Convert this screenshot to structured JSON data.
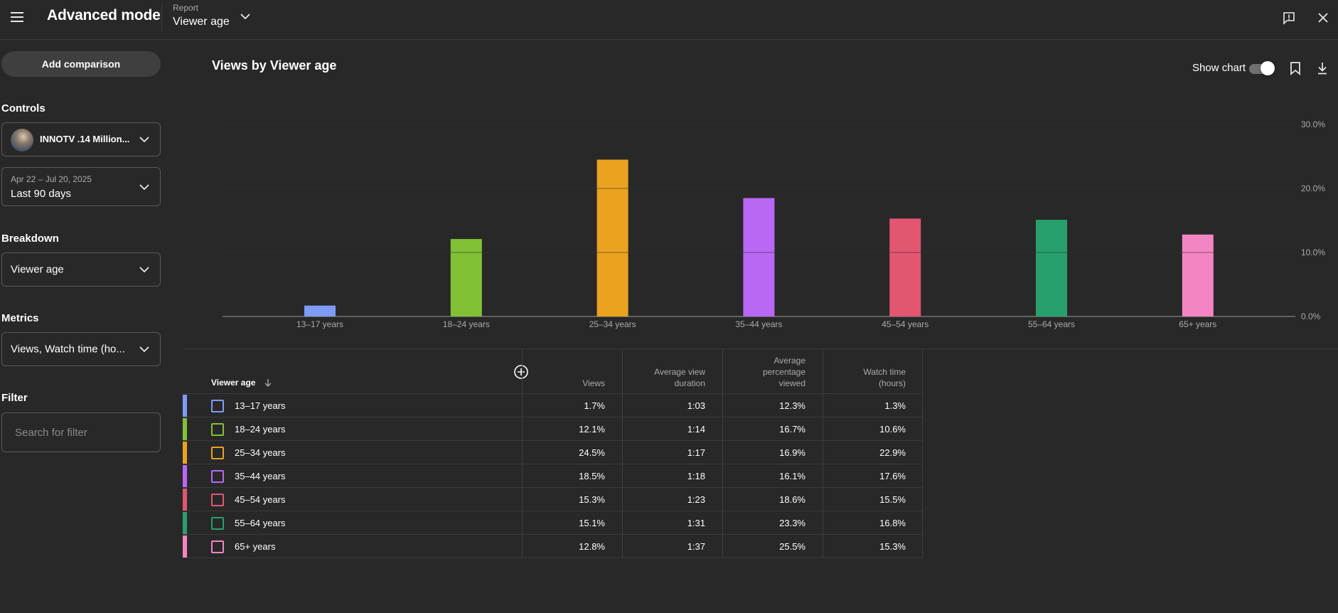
{
  "topbar": {
    "app_title": "Advanced mode",
    "report_label": "Report",
    "report_value": "Viewer age"
  },
  "sidebar": {
    "add_comparison": "Add comparison",
    "controls_label": "Controls",
    "channel_name": "INNOTV .14 Million...",
    "date_range_small": "Apr 22 – Jul 20, 2025",
    "date_range": "Last 90 days",
    "breakdown_label": "Breakdown",
    "breakdown_value": "Viewer age",
    "metrics_label": "Metrics",
    "metrics_value": "Views, Watch time (ho...",
    "filter_label": "Filter",
    "filter_placeholder": "Search for filter"
  },
  "chart_header": {
    "title": "Views by Viewer age",
    "show_chart_label": "Show chart",
    "show_chart_on": true
  },
  "chart_data": {
    "type": "bar",
    "title": "Views by Viewer age",
    "categories": [
      "13–17 years",
      "18–24 years",
      "25–34 years",
      "35–44 years",
      "45–54 years",
      "55–64 years",
      "65+ years"
    ],
    "values": [
      1.7,
      12.1,
      24.5,
      18.5,
      15.3,
      15.1,
      12.8
    ],
    "colors": [
      "#7e9bf7",
      "#82c136",
      "#eaa21f",
      "#b868f4",
      "#e25670",
      "#28a06d",
      "#f485c4"
    ],
    "ylim": [
      0,
      30
    ],
    "yticks": [
      "0.0%",
      "10.0%",
      "20.0%",
      "30.0%"
    ],
    "grid": true,
    "xlabel": "",
    "ylabel": ""
  },
  "table": {
    "columns": {
      "dimension": "Viewer age",
      "views": "Views",
      "avd_1": "Average view",
      "avd_2": "duration",
      "apv_1": "Average",
      "apv_2": "percentage",
      "apv_3": "viewed",
      "wt_1": "Watch time",
      "wt_2": "(hours)"
    },
    "rows": [
      {
        "label": "13–17 years",
        "views": "1.7%",
        "avd": "1:03",
        "apv": "12.3%",
        "wt": "1.3%"
      },
      {
        "label": "18–24 years",
        "views": "12.1%",
        "avd": "1:14",
        "apv": "16.7%",
        "wt": "10.6%"
      },
      {
        "label": "25–34 years",
        "views": "24.5%",
        "avd": "1:17",
        "apv": "16.9%",
        "wt": "22.9%"
      },
      {
        "label": "35–44 years",
        "views": "18.5%",
        "avd": "1:18",
        "apv": "16.1%",
        "wt": "17.6%"
      },
      {
        "label": "45–54 years",
        "views": "15.3%",
        "avd": "1:23",
        "apv": "18.6%",
        "wt": "15.5%"
      },
      {
        "label": "55–64 years",
        "views": "15.1%",
        "avd": "1:31",
        "apv": "23.3%",
        "wt": "16.8%"
      },
      {
        "label": "65+ years",
        "views": "12.8%",
        "avd": "1:37",
        "apv": "25.5%",
        "wt": "15.3%"
      }
    ]
  },
  "icons": {
    "menu": "menu-icon",
    "chevron": "chevron-down-icon",
    "feedback": "feedback-icon",
    "close": "close-icon",
    "bookmark": "bookmark-icon",
    "download": "download-icon",
    "add_column": "add-circle-icon",
    "sort": "arrow-down-icon"
  }
}
